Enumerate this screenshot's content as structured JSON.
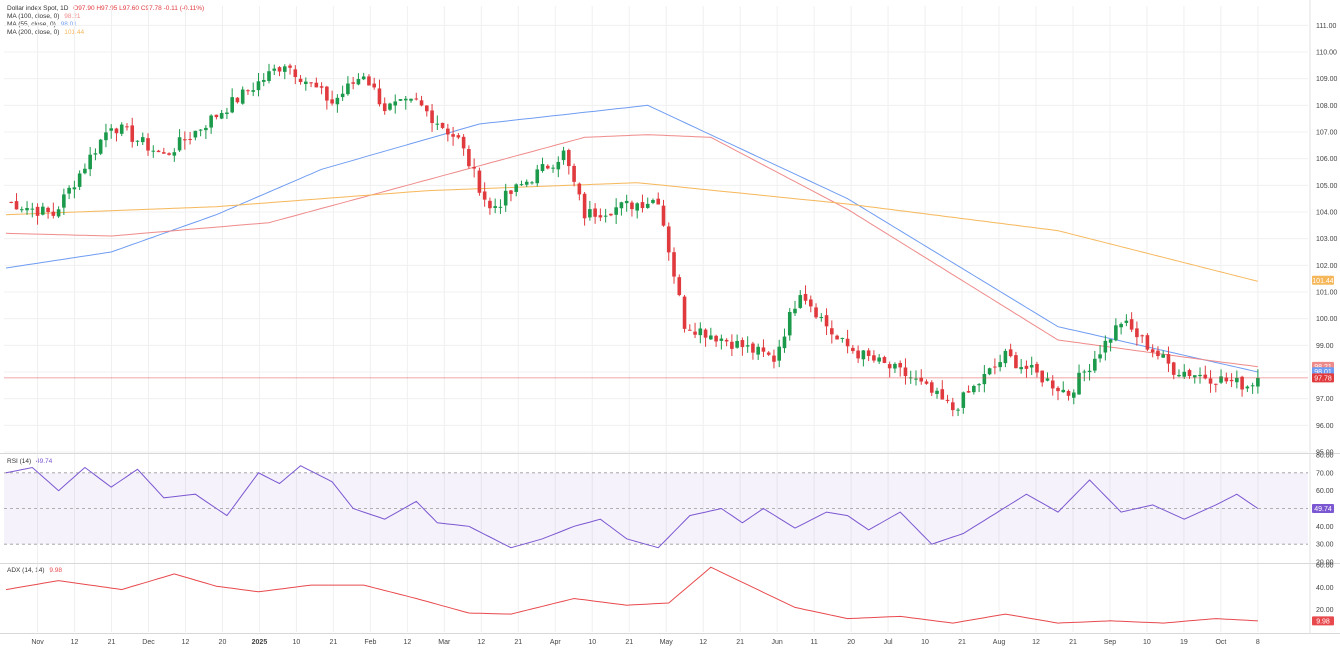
{
  "legend": {
    "symbol": "Dollar index Spot, 1D",
    "ohlc": "O97.90  H97.95  L97.60  C97.78  -0.11 (-0.11%)",
    "ma100_label": "MA (100, close, 0)",
    "ma100_value": "98.21",
    "ma55_label": "MA (55, close, 0)",
    "ma55_value": "98.01",
    "ma200_label": "MA (200, close, 0)",
    "ma200_value": "101.44"
  },
  "rsi": {
    "label": "RSI (14)",
    "value": "49.74"
  },
  "adx": {
    "label": "ADX (14, 14)",
    "value": "9.98"
  },
  "colors": {
    "up": "#1b9a4b",
    "down": "#e03a3e",
    "ma55": "#6f9cf2",
    "ma100": "#ef8a8a",
    "ma200": "#f6b75a",
    "rsi": "#7b57d1",
    "adx": "#e8494d",
    "grid": "#f0f0f0"
  },
  "chart_data": [
    {
      "type": "candlestick",
      "title": "Dollar index Spot, 1D",
      "ylim": [
        95,
        111.5
      ],
      "y_ticks": [
        "95.00",
        "96.00",
        "97.00",
        "98.00",
        "99.00",
        "100.00",
        "101.00",
        "102.00",
        "103.00",
        "104.00",
        "105.00",
        "106.00",
        "107.00",
        "108.00",
        "109.00",
        "110.00",
        "111.00"
      ],
      "x_ticks": [
        "Nov",
        "12",
        "21",
        "Dec",
        "12",
        "20",
        "2025",
        "10",
        "21",
        "Feb",
        "12",
        "Mar",
        "12",
        "21",
        "Apr",
        "10",
        "21",
        "May",
        "12",
        "21",
        "Jun",
        "11",
        "20",
        "Jul",
        "10",
        "21",
        "Aug",
        "12",
        "21",
        "Sep",
        "10",
        "19",
        "Oct",
        "8"
      ],
      "series": [
        {
          "name": "MA (55, close, 0)",
          "x": [
            0,
            20,
            40,
            60,
            90,
            122,
            160,
            200,
            238
          ],
          "values": [
            101.9,
            102.5,
            103.9,
            105.6,
            107.3,
            108.0,
            104.5,
            99.7,
            98.0
          ]
        },
        {
          "name": "MA (100, close, 0)",
          "x": [
            0,
            20,
            50,
            80,
            110,
            122,
            134,
            160,
            200,
            230,
            238
          ],
          "values": [
            103.2,
            103.1,
            103.6,
            105.2,
            106.8,
            106.9,
            106.8,
            104.1,
            99.2,
            98.4,
            98.2
          ]
        },
        {
          "name": "MA (200, close, 0)",
          "x": [
            0,
            40,
            80,
            120,
            160,
            200,
            238
          ],
          "values": [
            103.9,
            104.2,
            104.8,
            105.1,
            104.3,
            103.3,
            101.4
          ]
        }
      ],
      "close_anchors": {
        "x": [
          0,
          9,
          20,
          30,
          45,
          53,
          62,
          68,
          72,
          78,
          86,
          92,
          106,
          110,
          124,
          129,
          146,
          151,
          158,
          162,
          172,
          180,
          190,
          202,
          212,
          222,
          236,
          238
        ],
        "values": [
          104.4,
          103.9,
          107.3,
          106.1,
          108.4,
          109.6,
          108.1,
          109.2,
          107.9,
          108.1,
          106.7,
          104.1,
          106.2,
          103.9,
          104.5,
          99.8,
          98.5,
          101.1,
          99.2,
          98.7,
          97.8,
          96.6,
          98.6,
          97.2,
          99.9,
          98.1,
          97.5,
          97.78
        ]
      },
      "last_labels": {
        "ma200": "101.44",
        "ma100": "98.21",
        "ma55": "98.01",
        "price": "97.78"
      }
    },
    {
      "type": "line",
      "title": "RSI (14)",
      "ylim": [
        20,
        80
      ],
      "y_ticks": [
        "20.00",
        "30.00",
        "40.00",
        "50.00",
        "60.00",
        "70.00",
        "80.00"
      ],
      "band": [
        30,
        70
      ],
      "mid": 50,
      "x": [
        0,
        5,
        10,
        15,
        20,
        25,
        30,
        36,
        42,
        48,
        52,
        56,
        62,
        66,
        72,
        78,
        82,
        88,
        96,
        102,
        108,
        113,
        118,
        124,
        130,
        136,
        140,
        144,
        150,
        156,
        160,
        164,
        170,
        176,
        182,
        188,
        194,
        200,
        206,
        212,
        218,
        224,
        230,
        234,
        238
      ],
      "values": [
        70,
        73,
        60,
        73,
        62,
        72,
        56,
        58,
        46,
        70,
        64,
        74,
        65,
        50,
        44,
        54,
        42,
        40,
        28,
        33,
        40,
        44,
        33,
        28,
        46,
        50,
        42,
        50,
        39,
        48,
        46,
        38,
        48,
        30,
        36,
        47,
        58,
        48,
        66,
        48,
        52,
        44,
        52,
        58,
        50
      ]
    },
    {
      "type": "line",
      "title": "ADX (14, 14)",
      "ylim": [
        0,
        60
      ],
      "y_ticks": [
        "20.00",
        "40.00",
        "60.00"
      ],
      "x": [
        0,
        10,
        22,
        32,
        40,
        48,
        58,
        68,
        78,
        88,
        96,
        108,
        118,
        126,
        134,
        142,
        150,
        160,
        170,
        180,
        190,
        200,
        210,
        220,
        230,
        238
      ],
      "values": [
        38,
        46,
        38,
        52,
        41,
        36,
        42,
        42,
        30,
        17,
        16,
        30,
        24,
        26,
        58,
        40,
        22,
        12,
        14,
        8,
        16,
        8,
        10,
        8,
        12,
        9.98
      ]
    }
  ]
}
